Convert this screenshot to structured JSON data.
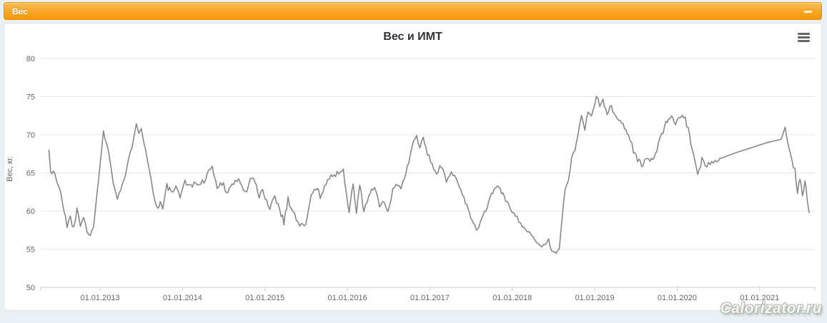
{
  "collapse_bar": {
    "label": "Вес",
    "minus_icon": "minus",
    "bg_top": "#fcbe5d",
    "bg_bottom": "#f49708"
  },
  "panel": {
    "title": "Вес и ИМТ",
    "export_menu_icon": "hamburger-menu",
    "watermark": "Calorizator.ru"
  },
  "colors": {
    "accent_orange": "#f9a82c",
    "series_line": "#888888",
    "grid_line": "#e6e6e6",
    "axis_line": "#c8cdd2",
    "tick_mark": "#cccccc",
    "axis_label": "#666666",
    "title_text": "#333333",
    "page_background": "#eaf0f4"
  },
  "chart_data": {
    "type": "line",
    "title": "Вес и ИМТ",
    "xlabel": "",
    "ylabel": "Вес, кг.",
    "ylim": [
      50,
      80
    ],
    "xlim": [
      2012.28,
      2021.67
    ],
    "grid": true,
    "legend": "none",
    "y_ticks": [
      {
        "value": 80,
        "label": "80"
      },
      {
        "value": 75,
        "label": "75"
      },
      {
        "value": 70,
        "label": "70"
      },
      {
        "value": 65,
        "label": "65"
      },
      {
        "value": 60,
        "label": "60"
      },
      {
        "value": 55,
        "label": "55"
      },
      {
        "value": 50,
        "label": "50"
      }
    ],
    "x_ticks": [
      {
        "t": 2013,
        "label": "01.01.2013"
      },
      {
        "t": 2014,
        "label": "01.01.2014"
      },
      {
        "t": 2015,
        "label": "01.01.2015"
      },
      {
        "t": 2016,
        "label": "01.01.2016"
      },
      {
        "t": 2017,
        "label": "01.01.2017"
      },
      {
        "t": 2018,
        "label": "01.01.2018"
      },
      {
        "t": 2019,
        "label": "01.01.2019"
      },
      {
        "t": 2020,
        "label": "01.01.2020"
      },
      {
        "t": 2021,
        "label": "01.01.2021"
      }
    ],
    "series": [
      {
        "name": "Вес",
        "units": "кг",
        "point_format": "[year_decimal, weight_kg, noise_amplitude_kg]",
        "points": [
          [
            2012.38,
            68.0,
            0
          ],
          [
            2012.4,
            65.3,
            0.3
          ],
          [
            2012.45,
            64.8,
            0.5
          ],
          [
            2012.52,
            62.5,
            0.5
          ],
          [
            2012.56,
            60.0,
            0.6
          ],
          [
            2012.6,
            58.2,
            0.6
          ],
          [
            2012.64,
            59.5,
            0.7
          ],
          [
            2012.68,
            57.5,
            0.7
          ],
          [
            2012.72,
            59.8,
            0.7
          ],
          [
            2012.76,
            58.5,
            0.6
          ],
          [
            2012.8,
            59.5,
            0.6
          ],
          [
            2012.84,
            57.5,
            0.5
          ],
          [
            2012.88,
            56.6,
            0.4
          ],
          [
            2012.92,
            58.0,
            0.2
          ],
          [
            2013.0,
            66.0,
            0.15
          ],
          [
            2013.04,
            70.4,
            0.2
          ],
          [
            2013.1,
            68.0,
            0.3
          ],
          [
            2013.16,
            64.0,
            0.4
          ],
          [
            2013.21,
            61.7,
            0.4
          ],
          [
            2013.27,
            63.5,
            0.4
          ],
          [
            2013.31,
            64.8,
            0.35
          ],
          [
            2013.35,
            66.8,
            0.3
          ],
          [
            2013.4,
            69.3,
            0.3
          ],
          [
            2013.44,
            71.6,
            0.2
          ],
          [
            2013.47,
            70.3,
            0.25
          ],
          [
            2013.5,
            70.9,
            0.2
          ],
          [
            2013.55,
            68.0,
            0.3
          ],
          [
            2013.6,
            65.2,
            0.35
          ],
          [
            2013.66,
            61.8,
            0.4
          ],
          [
            2013.7,
            60.1,
            0.4
          ],
          [
            2013.73,
            61.4,
            0.4
          ],
          [
            2013.76,
            60.2,
            0.4
          ],
          [
            2013.81,
            63.3,
            0.45
          ],
          [
            2013.86,
            62.5,
            0.5
          ],
          [
            2013.92,
            63.0,
            0.5
          ],
          [
            2013.97,
            61.6,
            0.4
          ],
          [
            2014.03,
            64.2,
            0.5
          ],
          [
            2014.1,
            63.0,
            0.55
          ],
          [
            2014.16,
            64.0,
            0.5
          ],
          [
            2014.22,
            63.2,
            0.5
          ],
          [
            2014.3,
            65.0,
            0.5
          ],
          [
            2014.36,
            65.7,
            0.45
          ],
          [
            2014.42,
            63.0,
            0.5
          ],
          [
            2014.48,
            63.8,
            0.55
          ],
          [
            2014.55,
            62.5,
            0.5
          ],
          [
            2014.62,
            63.8,
            0.5
          ],
          [
            2014.7,
            64.0,
            0.55
          ],
          [
            2014.76,
            62.2,
            0.5
          ],
          [
            2014.82,
            64.3,
            0.45
          ],
          [
            2014.88,
            63.8,
            0.4
          ],
          [
            2014.93,
            61.8,
            0.4
          ],
          [
            2014.97,
            62.6,
            0.4
          ],
          [
            2015.02,
            61.5,
            0.4
          ],
          [
            2015.06,
            60.4,
            0.45
          ],
          [
            2015.12,
            62.0,
            0.5
          ],
          [
            2015.18,
            60.3,
            0.5
          ],
          [
            2015.23,
            58.6,
            0.5
          ],
          [
            2015.28,
            61.5,
            0.55
          ],
          [
            2015.34,
            60.2,
            0.5
          ],
          [
            2015.4,
            58.3,
            0.45
          ],
          [
            2015.46,
            58.0,
            0.4
          ],
          [
            2015.51,
            58.8,
            0.4
          ],
          [
            2015.56,
            62.0,
            0.45
          ],
          [
            2015.62,
            63.1,
            0.4
          ],
          [
            2015.67,
            61.9,
            0.4
          ],
          [
            2015.74,
            63.8,
            0.4
          ],
          [
            2015.82,
            64.6,
            0.35
          ],
          [
            2015.95,
            65.4,
            0.3
          ],
          [
            2016.02,
            59.9,
            0.3
          ],
          [
            2016.07,
            63.6,
            0.35
          ],
          [
            2016.11,
            59.8,
            0.35
          ],
          [
            2016.15,
            63.4,
            0.35
          ],
          [
            2016.2,
            60.0,
            0.4
          ],
          [
            2016.26,
            62.0,
            0.45
          ],
          [
            2016.33,
            63.2,
            0.4
          ],
          [
            2016.39,
            60.4,
            0.4
          ],
          [
            2016.45,
            61.3,
            0.4
          ],
          [
            2016.49,
            59.7,
            0.35
          ],
          [
            2016.55,
            62.6,
            0.4
          ],
          [
            2016.61,
            63.7,
            0.4
          ],
          [
            2016.65,
            62.8,
            0.35
          ],
          [
            2016.71,
            65.0,
            0.3
          ],
          [
            2016.76,
            67.1,
            0.3
          ],
          [
            2016.8,
            69.2,
            0.3
          ],
          [
            2016.84,
            69.7,
            0.3
          ],
          [
            2016.88,
            68.5,
            0.3
          ],
          [
            2016.92,
            69.4,
            0.3
          ],
          [
            2016.97,
            67.4,
            0.35
          ],
          [
            2017.03,
            66.3,
            0.4
          ],
          [
            2017.08,
            64.8,
            0.5
          ],
          [
            2017.14,
            65.8,
            0.5
          ],
          [
            2017.2,
            64.0,
            0.5
          ],
          [
            2017.26,
            65.5,
            0.45
          ],
          [
            2017.32,
            64.2,
            0.4
          ],
          [
            2017.38,
            62.8,
            0.35
          ],
          [
            2017.43,
            61.2,
            0.3
          ],
          [
            2017.48,
            59.8,
            0.3
          ],
          [
            2017.53,
            58.3,
            0.3
          ],
          [
            2017.58,
            57.3,
            0.3
          ],
          [
            2017.63,
            59.3,
            0.35
          ],
          [
            2017.68,
            60.0,
            0.3
          ],
          [
            2017.73,
            61.8,
            0.3
          ],
          [
            2017.78,
            62.8,
            0.3
          ],
          [
            2017.82,
            63.5,
            0.3
          ],
          [
            2017.87,
            62.4,
            0.3
          ],
          [
            2017.92,
            61.5,
            0.3
          ],
          [
            2017.97,
            60.5,
            0.3
          ],
          [
            2018.02,
            59.8,
            0.3
          ],
          [
            2018.08,
            58.8,
            0.3
          ],
          [
            2018.14,
            57.9,
            0.3
          ],
          [
            2018.2,
            57.1,
            0.3
          ],
          [
            2018.26,
            56.3,
            0.3
          ],
          [
            2018.32,
            55.7,
            0.3
          ],
          [
            2018.38,
            55.4,
            0.3
          ],
          [
            2018.44,
            56.2,
            0.25
          ],
          [
            2018.47,
            55.0,
            0.2
          ],
          [
            2018.53,
            54.6,
            0.15
          ],
          [
            2018.57,
            55.0,
            0.1
          ],
          [
            2018.6,
            58.7,
            0.15
          ],
          [
            2018.64,
            62.7,
            0.2
          ],
          [
            2018.68,
            64.0,
            0.25
          ],
          [
            2018.72,
            66.8,
            0.3
          ],
          [
            2018.76,
            68.3,
            0.4
          ],
          [
            2018.8,
            70.5,
            0.4
          ],
          [
            2018.84,
            72.3,
            0.4
          ],
          [
            2018.88,
            70.8,
            0.4
          ],
          [
            2018.92,
            73.0,
            0.4
          ],
          [
            2018.96,
            72.5,
            0.4
          ],
          [
            2019.02,
            75.0,
            0.3
          ],
          [
            2019.06,
            74.0,
            0.4
          ],
          [
            2019.1,
            74.6,
            0.4
          ],
          [
            2019.15,
            73.0,
            0.4
          ],
          [
            2019.2,
            73.5,
            0.4
          ],
          [
            2019.26,
            72.4,
            0.4
          ],
          [
            2019.31,
            72.0,
            0.4
          ],
          [
            2019.36,
            71.0,
            0.4
          ],
          [
            2019.41,
            69.9,
            0.4
          ],
          [
            2019.47,
            68.0,
            0.4
          ],
          [
            2019.52,
            66.8,
            0.4
          ],
          [
            2019.57,
            65.9,
            0.35
          ],
          [
            2019.62,
            67.0,
            0.4
          ],
          [
            2019.67,
            66.4,
            0.4
          ],
          [
            2019.72,
            67.1,
            0.4
          ],
          [
            2019.77,
            68.7,
            0.4
          ],
          [
            2019.83,
            70.5,
            0.4
          ],
          [
            2019.88,
            71.9,
            0.35
          ],
          [
            2019.93,
            72.3,
            0.35
          ],
          [
            2019.98,
            71.5,
            0.4
          ],
          [
            2020.04,
            72.3,
            0.4
          ],
          [
            2020.1,
            72.0,
            0.35
          ],
          [
            2020.15,
            70.0,
            0.3
          ],
          [
            2020.2,
            67.1,
            0.3
          ],
          [
            2020.25,
            64.6,
            0.3
          ],
          [
            2020.3,
            66.7,
            0.4
          ],
          [
            2020.36,
            66.0,
            0.4
          ],
          [
            2020.42,
            66.7,
            0.4
          ],
          [
            2020.48,
            66.5,
            0.3
          ],
          [
            2020.52,
            66.9,
            0.05
          ],
          [
            2020.7,
            67.6,
            0
          ],
          [
            2020.9,
            68.3,
            0
          ],
          [
            2021.1,
            69.0,
            0
          ],
          [
            2021.26,
            69.4,
            0
          ],
          [
            2021.31,
            70.9,
            0.15
          ],
          [
            2021.35,
            68.2,
            0.3
          ],
          [
            2021.39,
            66.8,
            0.4
          ],
          [
            2021.43,
            65.2,
            0.5
          ],
          [
            2021.46,
            62.7,
            0.5
          ],
          [
            2021.49,
            64.4,
            0.5
          ],
          [
            2021.52,
            62.2,
            0.45
          ],
          [
            2021.55,
            63.8,
            0.4
          ],
          [
            2021.58,
            61.5,
            0.3
          ],
          [
            2021.6,
            59.8,
            0
          ]
        ]
      }
    ]
  }
}
